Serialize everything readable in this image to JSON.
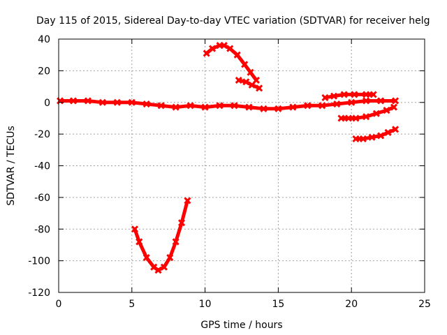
{
  "chart_data": {
    "type": "scatter",
    "title": "Day 115 of 2015, Sidereal Day-to-day VTEC variation (SDTVAR) for receiver helg",
    "xlabel": "GPS time / hours",
    "ylabel": "SDTVAR / TECUs",
    "xlim": [
      0,
      25
    ],
    "ylim": [
      -120,
      40
    ],
    "xticks": [
      0,
      5,
      10,
      15,
      20,
      25
    ],
    "yticks": [
      -120,
      -100,
      -80,
      -60,
      -40,
      -20,
      0,
      20,
      40
    ],
    "grid": true,
    "legend": "none",
    "marker": "thick-cross",
    "color": "#ff0000",
    "series": [
      {
        "x": [
          0.1,
          1.0,
          2.0,
          3.0,
          4.0,
          5.0,
          6.0,
          7.0,
          8.0,
          9.0,
          10.0,
          11.0,
          12.0,
          13.0,
          14.0,
          15.0,
          16.0,
          17.0,
          18.0,
          19.0,
          20.0,
          21.0,
          22.0,
          23.0
        ],
        "y": [
          1,
          1,
          1,
          0,
          0,
          0,
          -1,
          -2,
          -3,
          -2,
          -3,
          -2,
          -2,
          -3,
          -4,
          -4,
          -3,
          -2,
          -2,
          -1,
          0,
          1,
          1,
          1
        ]
      },
      {
        "x": [
          5.2,
          5.5,
          6.0,
          6.5,
          6.8,
          7.2,
          7.6,
          8.0,
          8.4,
          8.8
        ],
        "y": [
          -80,
          -88,
          -98,
          -104,
          -106,
          -104,
          -98,
          -88,
          -76,
          -62
        ]
      },
      {
        "x": [
          10.1,
          10.5,
          11.0,
          11.3,
          11.7,
          12.2,
          12.7,
          13.1,
          13.5
        ],
        "y": [
          31,
          34,
          36,
          36,
          34,
          30,
          24,
          19,
          14
        ]
      },
      {
        "x": [
          12.3,
          12.8,
          13.2,
          13.7
        ],
        "y": [
          14,
          13,
          11,
          9
        ]
      },
      {
        "x": [
          18.2,
          18.8,
          19.5,
          20.2,
          21.0,
          21.5
        ],
        "y": [
          3,
          4,
          5,
          5,
          5,
          5
        ]
      },
      {
        "x": [
          19.3,
          19.8,
          20.3,
          21.0,
          21.7,
          22.4,
          22.9
        ],
        "y": [
          -10,
          -10,
          -10,
          -9,
          -7,
          -5,
          -3
        ]
      },
      {
        "x": [
          20.3,
          20.8,
          21.4,
          22.0,
          22.5,
          23.0
        ],
        "y": [
          -23,
          -23,
          -22,
          -21,
          -19,
          -17
        ]
      }
    ]
  }
}
